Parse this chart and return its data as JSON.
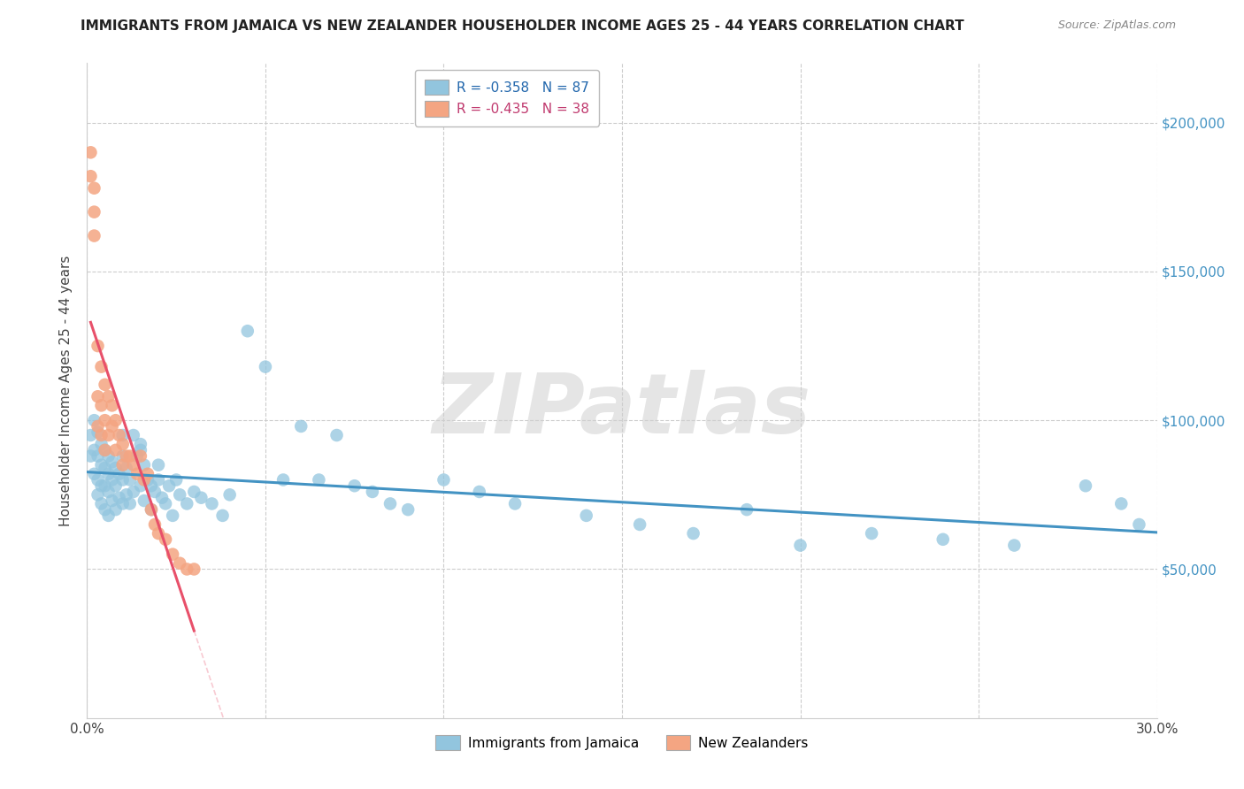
{
  "title": "IMMIGRANTS FROM JAMAICA VS NEW ZEALANDER HOUSEHOLDER INCOME AGES 25 - 44 YEARS CORRELATION CHART",
  "source": "Source: ZipAtlas.com",
  "ylabel": "Householder Income Ages 25 - 44 years",
  "xlim": [
    0.0,
    0.3
  ],
  "ylim": [
    0,
    220000
  ],
  "xticks": [
    0.0,
    0.05,
    0.1,
    0.15,
    0.2,
    0.25,
    0.3
  ],
  "xticklabels": [
    "0.0%",
    "",
    "",
    "",
    "",
    "",
    "30.0%"
  ],
  "ytick_values": [
    50000,
    100000,
    150000,
    200000
  ],
  "ytick_labels": [
    "$50,000",
    "$100,000",
    "$150,000",
    "$200,000"
  ],
  "blue_R": "-0.358",
  "blue_N": "87",
  "pink_R": "-0.435",
  "pink_N": "38",
  "blue_color": "#92c5de",
  "pink_color": "#f4a582",
  "blue_line_color": "#4393c3",
  "pink_line_color": "#e8506a",
  "blue_label": "Immigrants from Jamaica",
  "pink_label": "New Zealanders",
  "watermark": "ZIPatlas",
  "background_color": "#ffffff",
  "grid_color": "#cccccc",
  "blue_x": [
    0.001,
    0.001,
    0.002,
    0.002,
    0.002,
    0.003,
    0.003,
    0.003,
    0.003,
    0.004,
    0.004,
    0.004,
    0.004,
    0.005,
    0.005,
    0.005,
    0.005,
    0.006,
    0.006,
    0.006,
    0.006,
    0.007,
    0.007,
    0.007,
    0.008,
    0.008,
    0.008,
    0.009,
    0.009,
    0.01,
    0.01,
    0.01,
    0.011,
    0.011,
    0.012,
    0.012,
    0.013,
    0.013,
    0.014,
    0.015,
    0.015,
    0.016,
    0.016,
    0.017,
    0.018,
    0.018,
    0.019,
    0.02,
    0.021,
    0.022,
    0.023,
    0.024,
    0.025,
    0.026,
    0.028,
    0.03,
    0.032,
    0.035,
    0.038,
    0.04,
    0.045,
    0.05,
    0.055,
    0.06,
    0.065,
    0.07,
    0.075,
    0.08,
    0.085,
    0.09,
    0.1,
    0.11,
    0.12,
    0.14,
    0.155,
    0.17,
    0.185,
    0.2,
    0.22,
    0.24,
    0.26,
    0.28,
    0.29,
    0.295,
    0.01,
    0.015,
    0.02
  ],
  "blue_y": [
    95000,
    88000,
    100000,
    90000,
    82000,
    96000,
    88000,
    80000,
    75000,
    92000,
    85000,
    78000,
    72000,
    90000,
    84000,
    78000,
    70000,
    88000,
    82000,
    76000,
    68000,
    86000,
    80000,
    73000,
    84000,
    78000,
    70000,
    82000,
    74000,
    88000,
    80000,
    72000,
    84000,
    75000,
    80000,
    72000,
    95000,
    76000,
    88000,
    92000,
    78000,
    85000,
    73000,
    80000,
    78000,
    70000,
    76000,
    80000,
    74000,
    72000,
    78000,
    68000,
    80000,
    75000,
    72000,
    76000,
    74000,
    72000,
    68000,
    75000,
    130000,
    118000,
    80000,
    98000,
    80000,
    95000,
    78000,
    76000,
    72000,
    70000,
    80000,
    76000,
    72000,
    68000,
    65000,
    62000,
    70000,
    58000,
    62000,
    60000,
    58000,
    78000,
    72000,
    65000,
    95000,
    90000,
    85000
  ],
  "pink_x": [
    0.001,
    0.001,
    0.002,
    0.002,
    0.002,
    0.003,
    0.003,
    0.003,
    0.004,
    0.004,
    0.004,
    0.005,
    0.005,
    0.005,
    0.006,
    0.006,
    0.007,
    0.007,
    0.008,
    0.008,
    0.009,
    0.01,
    0.01,
    0.011,
    0.012,
    0.013,
    0.014,
    0.015,
    0.016,
    0.017,
    0.018,
    0.019,
    0.02,
    0.022,
    0.024,
    0.026,
    0.028,
    0.03
  ],
  "pink_y": [
    190000,
    182000,
    178000,
    170000,
    162000,
    125000,
    108000,
    98000,
    118000,
    105000,
    95000,
    112000,
    100000,
    90000,
    108000,
    95000,
    105000,
    98000,
    100000,
    90000,
    95000,
    92000,
    85000,
    88000,
    88000,
    85000,
    82000,
    88000,
    80000,
    82000,
    70000,
    65000,
    62000,
    60000,
    55000,
    52000,
    50000,
    50000
  ]
}
